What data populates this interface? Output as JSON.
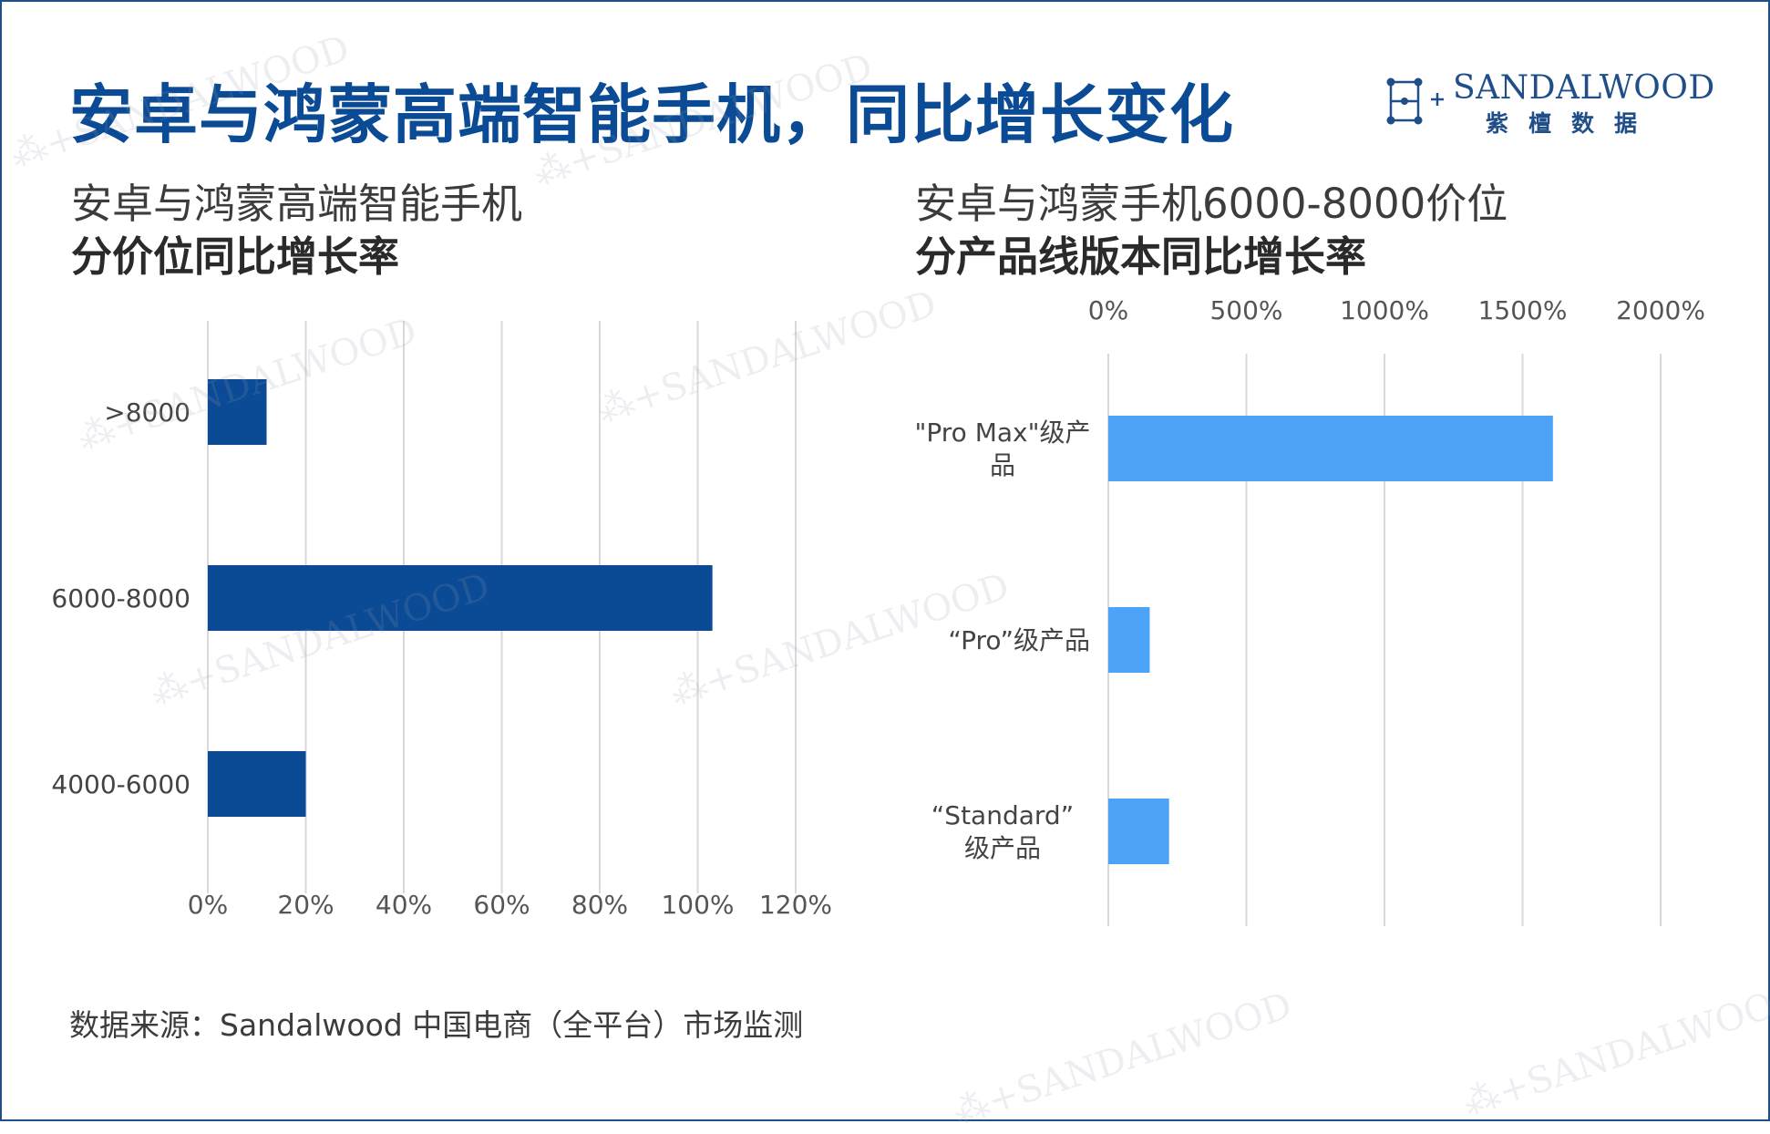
{
  "header": {
    "title": "安卓与鸿蒙高端智能手机，同比增长变化",
    "logo_word": "SANDALWOOD",
    "logo_cn": "紫檀数据"
  },
  "colors": {
    "title": "#0b4a94",
    "left_bar": "#0b4a94",
    "right_bar": "#4da3f7",
    "grid": "#d9d9d9",
    "frame": "#1f4e89"
  },
  "left_panel": {
    "subtitle_line1": "安卓与鸿蒙高端智能手机",
    "subtitle_line2": "分价位同比增长率"
  },
  "right_panel": {
    "subtitle_line1": "安卓与鸿蒙手机6000-8000价位",
    "subtitle_line2": "分产品线版本同比增长率"
  },
  "chart_data": [
    {
      "type": "bar",
      "orientation": "horizontal",
      "categories": [
        ">8000",
        "6000-8000",
        "4000-6000"
      ],
      "values": [
        12,
        103,
        20
      ],
      "unit": "%",
      "xlim": [
        0,
        120
      ],
      "ticks": [
        "0%",
        "20%",
        "40%",
        "60%",
        "80%",
        "100%",
        "120%"
      ],
      "tick_values": [
        0,
        20,
        40,
        60,
        80,
        100,
        120
      ],
      "axis_position": "bottom",
      "grid": true,
      "legend": "none"
    },
    {
      "type": "bar",
      "orientation": "horizontal",
      "categories": [
        "\"Pro Max\"级产品",
        "“Pro”级产品",
        "“Standard”级产品"
      ],
      "values": [
        1610,
        150,
        220
      ],
      "unit": "%",
      "xlim": [
        0,
        2000
      ],
      "ticks": [
        "0%",
        "500%",
        "1000%",
        "1500%",
        "2000%"
      ],
      "tick_values": [
        0,
        500,
        1000,
        1500,
        2000
      ],
      "axis_position": "top",
      "grid": true,
      "legend": "none"
    }
  ],
  "footer": {
    "source": "数据来源：Sandalwood 中国电商（全平台）市场监测"
  },
  "watermark": "SANDALWOOD"
}
